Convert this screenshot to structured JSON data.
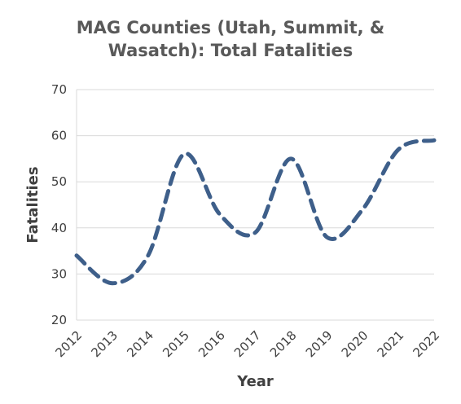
{
  "chart_data": {
    "type": "line",
    "title_lines": [
      "MAG Counties (Utah, Summit, &",
      "Wasatch):  Total Fatalities"
    ],
    "xlabel": "Year",
    "ylabel": "Fatalities",
    "x": [
      "2012",
      "2013",
      "2014",
      "2015",
      "2016",
      "2017",
      "2018",
      "2019",
      "2020",
      "2021",
      "2022"
    ],
    "series": [
      {
        "values": [
          34,
          28,
          34,
          56,
          43,
          39,
          55,
          38,
          44,
          57,
          59
        ]
      }
    ],
    "ylim": [
      20,
      70
    ],
    "yticks": [
      20,
      30,
      40,
      50,
      60,
      70
    ],
    "grid": true,
    "legend": "none",
    "colors": {
      "line": "#3E5F8A",
      "grid": "#D9D9D9",
      "text": "#595959"
    },
    "line_style": "dashed-smooth"
  }
}
